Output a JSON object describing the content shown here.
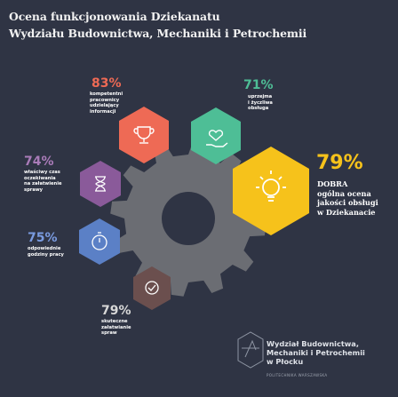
{
  "title": {
    "line1": "Ocena funkcjonowania Dziekanatu",
    "line2": "Wydziału Budownictwa, Mechaniki i Petrochemii"
  },
  "colors": {
    "background": "#2f3444",
    "gear": "#6b6d73",
    "coral": "#ee6a55",
    "teal": "#4ebe96",
    "yellow": "#f6c21b",
    "purple": "#8a5a9a",
    "blue": "#5b80c6",
    "brown": "#6b4f4e"
  },
  "items": [
    {
      "percent": "83%",
      "lines": [
        "kompetentni",
        "pracownicy",
        "udzielający",
        "informacji"
      ],
      "icon": "trophy-icon",
      "color": "#ee6a55"
    },
    {
      "percent": "71%",
      "lines": [
        "uprzejma",
        "i życzliwa",
        "obsługa"
      ],
      "icon": "hand-heart-icon",
      "color": "#4ebe96"
    },
    {
      "percent": "74%",
      "lines": [
        "właściwy czas",
        "oczekiwania",
        "na załatwienie",
        "sprawy"
      ],
      "icon": "hourglass-icon",
      "color": "#8a5a9a"
    },
    {
      "percent": "75%",
      "lines": [
        "odpowiednie",
        "godziny pracy"
      ],
      "icon": "stopwatch-icon",
      "color": "#5b80c6"
    },
    {
      "percent": "79%",
      "lines": [
        "skuteczne",
        "załatwianie",
        "spraw"
      ],
      "icon": "check-circle-icon",
      "color": "#6b4f4e"
    }
  ],
  "highlight": {
    "percent": "79%",
    "lines": [
      "DOBRA",
      "ogólna ocena",
      "jakości obsługi",
      "w Dziekanacie"
    ],
    "icon": "lightbulb-icon",
    "color": "#f6c21b"
  },
  "footer": {
    "lines": [
      "Wydział Budownictwa,",
      "Mechaniki i Petrochemii",
      "w Płocku"
    ],
    "sub": "POLITECHNIKA WARSZAWSKA",
    "logo": "faculty-logo-icon"
  }
}
